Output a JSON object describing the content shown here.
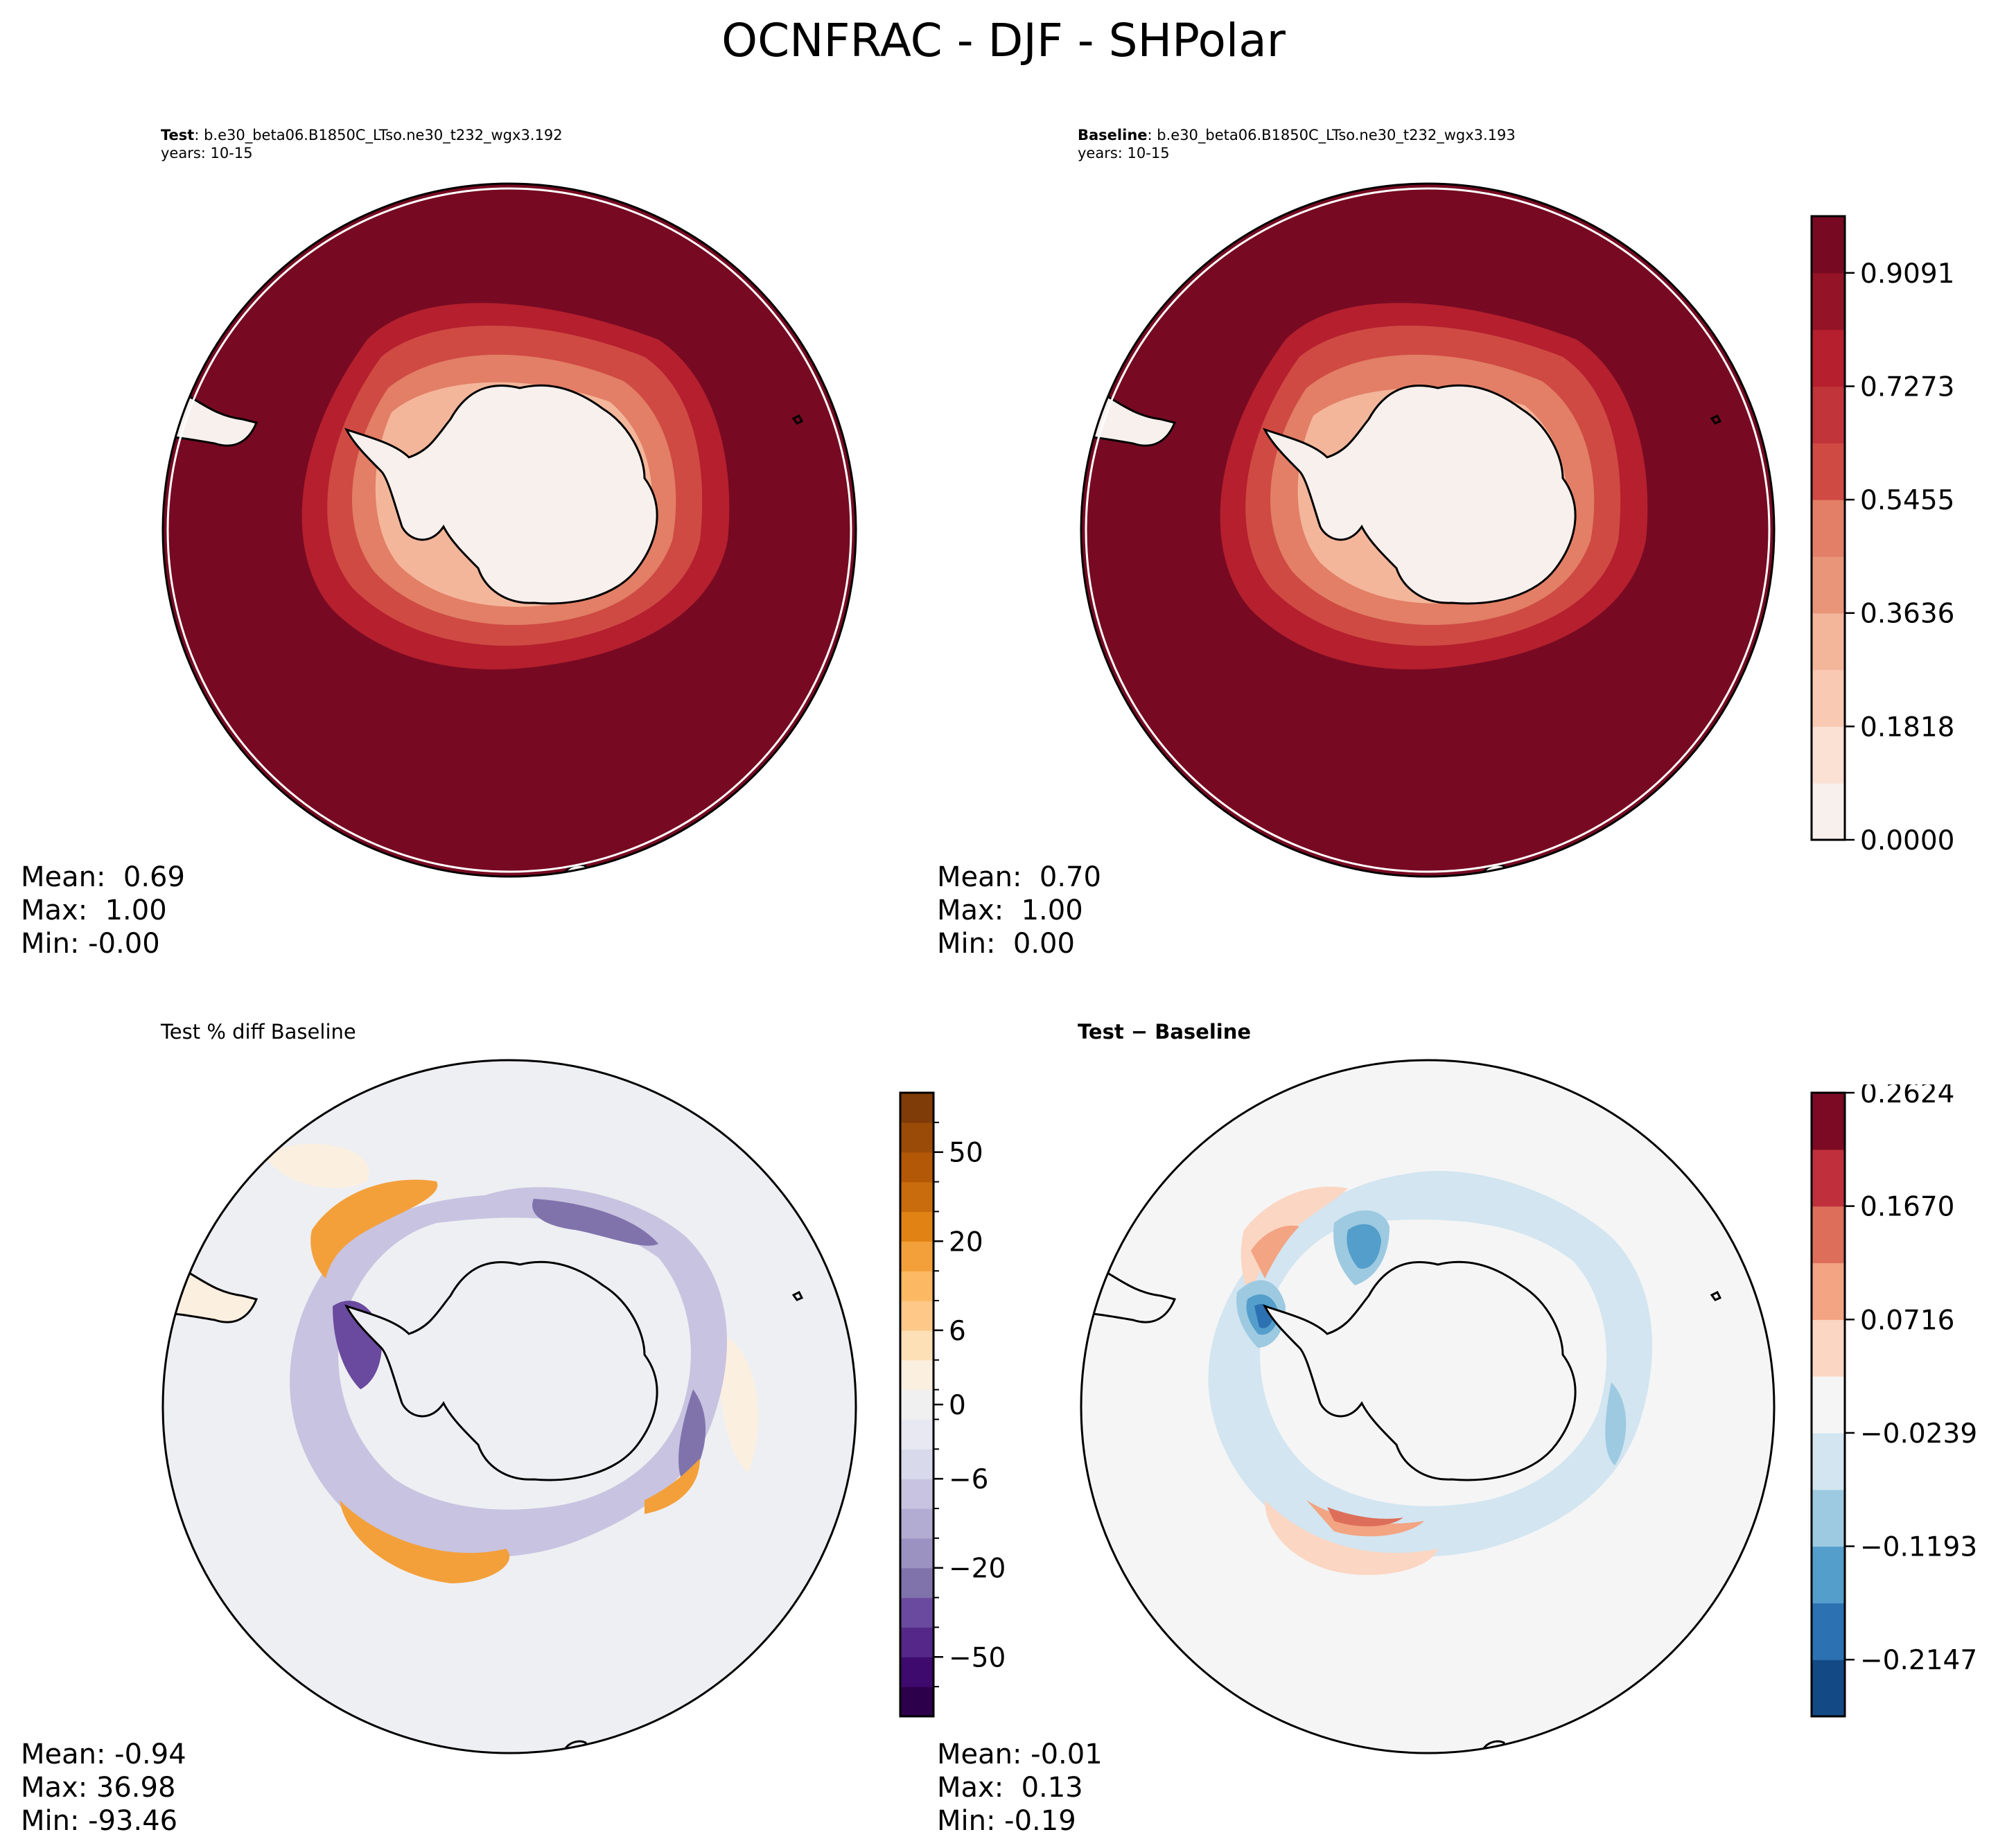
{
  "title": "OCNFRAC - DJF - SHPolar",
  "panels": {
    "test": {
      "label_bold": "Test",
      "label_rest": ": b.e30_beta06.B1850C_LTso.ne30_t232_wgx3.192",
      "years": "years: 10-15",
      "stats": [
        "Mean:  0.69",
        "Max:  1.00",
        "Min: -0.00"
      ]
    },
    "baseline": {
      "label_bold": "Baseline",
      "label_rest": ": b.e30_beta06.B1850C_LTso.ne30_t232_wgx3.193",
      "years": "years: 10-15",
      "stats": [
        "Mean:  0.70",
        "Max:  1.00",
        "Min:  0.00"
      ]
    },
    "pctdiff": {
      "label": "Test % diff Baseline",
      "stats": [
        "Mean: -0.94",
        "Max: 36.98",
        "Min: -93.46"
      ]
    },
    "diff": {
      "label": "Test − Baseline",
      "stats": [
        "Mean: -0.01",
        "Max:  0.13",
        "Min: -0.19"
      ]
    }
  },
  "chart_data": [
    {
      "type": "heatmap",
      "name": "Test",
      "projection": "south polar stereographic",
      "colormap": "Reds (white to dark red)",
      "levels": [
        0.0,
        0.0909,
        0.1818,
        0.2727,
        0.3636,
        0.4545,
        0.5455,
        0.6364,
        0.7273,
        0.8182,
        0.9091,
        1.0
      ],
      "mean": 0.69,
      "max": 1.0,
      "min": -0.0
    },
    {
      "type": "heatmap",
      "name": "Baseline",
      "projection": "south polar stereographic",
      "colormap": "Reds (white to dark red)",
      "levels": [
        0.0,
        0.0909,
        0.1818,
        0.2727,
        0.3636,
        0.4545,
        0.5455,
        0.6364,
        0.7273,
        0.8182,
        0.9091,
        1.0
      ],
      "colorbar_ticks": [
        "0.0000",
        "0.1818",
        "0.3636",
        "0.5455",
        "0.7273",
        "0.9091"
      ],
      "mean": 0.7,
      "max": 1.0,
      "min": 0.0
    },
    {
      "type": "heatmap",
      "name": "Test % diff Baseline",
      "projection": "south polar stereographic",
      "colormap": "PuOr diverging",
      "colors": [
        "#2d004b",
        "#3f0a6d",
        "#542788",
        "#6a4a9e",
        "#8073ac",
        "#9b92c2",
        "#b2abd2",
        "#c8c3e0",
        "#d8daeb",
        "#e7e8f1",
        "#f0f0f0",
        "#fbefe0",
        "#fde0b6",
        "#fdc888",
        "#fdb863",
        "#f3a03b",
        "#e08214",
        "#c96c0d",
        "#b35806",
        "#9a4b08",
        "#7f3b08"
      ],
      "colorbar_ticks": [
        "−50",
        "−20",
        "−6",
        "0",
        "6",
        "20",
        "50"
      ],
      "mean": -0.94,
      "max": 36.98,
      "min": -93.46
    },
    {
      "type": "heatmap",
      "name": "Test − Baseline",
      "projection": "south polar stereographic",
      "colormap": "RdBu_r diverging",
      "colors": [
        "#134a86",
        "#2c71b1",
        "#539ecb",
        "#9dcae1",
        "#d2e5f0",
        "#f5f5f5",
        "#fbd6c3",
        "#f3a482",
        "#dd6f5a",
        "#c0303c",
        "#7c0a24"
      ],
      "colorbar_ticks": [
        "−0.2147",
        "−0.1193",
        "−0.0239",
        "0.0716",
        "0.1670",
        "0.2624"
      ],
      "mean": -0.01,
      "max": 0.13,
      "min": -0.19
    }
  ]
}
